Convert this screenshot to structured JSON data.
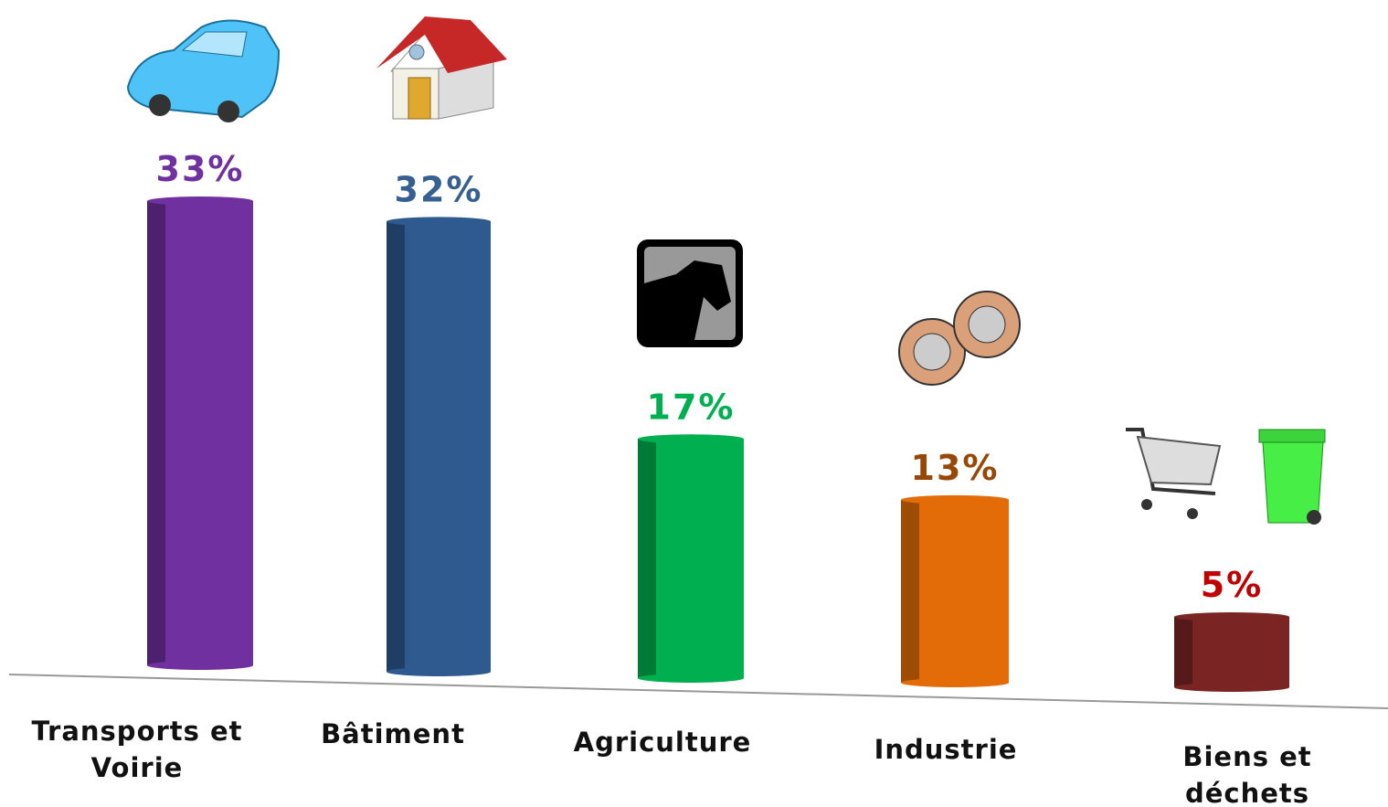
{
  "chart_data": {
    "type": "bar",
    "categories": [
      "Transports et Voirie",
      "Bâtiment",
      "Agriculture",
      "Industrie",
      "Biens et déchets"
    ],
    "values": [
      33,
      32,
      17,
      13,
      5
    ],
    "value_labels": [
      "33%",
      "32%",
      "17%",
      "13%",
      "5%"
    ],
    "colors": [
      "#7030a0",
      "#2e5a8f",
      "#00b050",
      "#e36c09",
      "#7a2424"
    ],
    "label_colors": [
      "#7030a0",
      "#366092",
      "#00b050",
      "#974806",
      "#c00000"
    ]
  }
}
